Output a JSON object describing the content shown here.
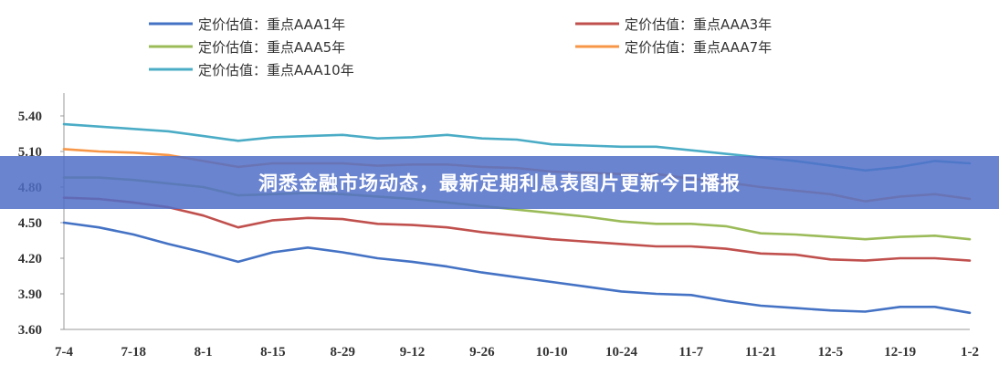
{
  "banner": {
    "text": "洞悉金融市场动态，最新定期利息表图片更新今日播报",
    "color": "#506ec8"
  },
  "chart_data": {
    "type": "line",
    "title": "",
    "xlabel": "",
    "ylabel": "",
    "ylim": [
      3.6,
      5.5
    ],
    "yticks": [
      "3.60",
      "3.90",
      "4.20",
      "4.50",
      "4.80",
      "5.10",
      "5.40"
    ],
    "grid": false,
    "legend_position": "top",
    "x": [
      "7-4",
      "7-11",
      "7-18",
      "7-25",
      "8-1",
      "8-8",
      "8-15",
      "8-22",
      "8-29",
      "9-5",
      "9-12",
      "9-19",
      "9-26",
      "10-3",
      "10-10",
      "10-17",
      "10-24",
      "10-31",
      "11-7",
      "11-14",
      "11-21",
      "11-28",
      "12-5",
      "12-12",
      "12-19",
      "12-26",
      "1-2"
    ],
    "xtick_labels": [
      "7-4",
      "7-18",
      "8-1",
      "8-15",
      "8-29",
      "9-12",
      "9-26",
      "10-10",
      "10-24",
      "11-7",
      "11-21",
      "12-5",
      "12-19",
      "1-2"
    ],
    "series": [
      {
        "name": "定价估值：重点AAA1年",
        "color": "#4472c4",
        "values": [
          4.5,
          4.46,
          4.4,
          4.32,
          4.25,
          4.17,
          4.25,
          4.29,
          4.25,
          4.2,
          4.17,
          4.13,
          4.08,
          4.04,
          4.0,
          3.96,
          3.92,
          3.9,
          3.89,
          3.84,
          3.8,
          3.78,
          3.76,
          3.75,
          3.79,
          3.79,
          3.74
        ]
      },
      {
        "name": "定价估值：重点AAA3年",
        "color": "#c0504d",
        "values": [
          4.71,
          4.7,
          4.67,
          4.63,
          4.56,
          4.46,
          4.52,
          4.54,
          4.53,
          4.49,
          4.48,
          4.46,
          4.42,
          4.39,
          4.36,
          4.34,
          4.32,
          4.3,
          4.3,
          4.28,
          4.24,
          4.23,
          4.19,
          4.18,
          4.2,
          4.2,
          4.18
        ]
      },
      {
        "name": "定价估值：重点AAA5年",
        "color": "#9bbb59",
        "values": [
          4.88,
          4.88,
          4.86,
          4.83,
          4.8,
          4.73,
          4.74,
          4.75,
          4.74,
          4.72,
          4.7,
          4.67,
          4.64,
          4.61,
          4.58,
          4.55,
          4.51,
          4.49,
          4.49,
          4.47,
          4.41,
          4.4,
          4.38,
          4.36,
          4.38,
          4.39,
          4.36
        ]
      },
      {
        "name": "定价估值：重点AAA7年",
        "color": "#f79646",
        "values": [
          5.12,
          5.1,
          5.09,
          5.07,
          5.02,
          4.97,
          5.0,
          5.0,
          5.0,
          4.98,
          4.99,
          4.99,
          4.97,
          4.96,
          4.93,
          4.92,
          4.91,
          4.91,
          4.87,
          4.84,
          4.8,
          4.77,
          4.74,
          4.68,
          4.72,
          4.74,
          4.7
        ]
      },
      {
        "name": "定价估值：重点AAA10年",
        "color": "#4bacc6",
        "values": [
          5.33,
          5.31,
          5.29,
          5.27,
          5.23,
          5.19,
          5.22,
          5.23,
          5.24,
          5.21,
          5.22,
          5.24,
          5.21,
          5.2,
          5.16,
          5.15,
          5.14,
          5.14,
          5.11,
          5.08,
          5.05,
          5.02,
          4.98,
          4.94,
          4.97,
          5.02,
          5.0
        ]
      }
    ]
  }
}
